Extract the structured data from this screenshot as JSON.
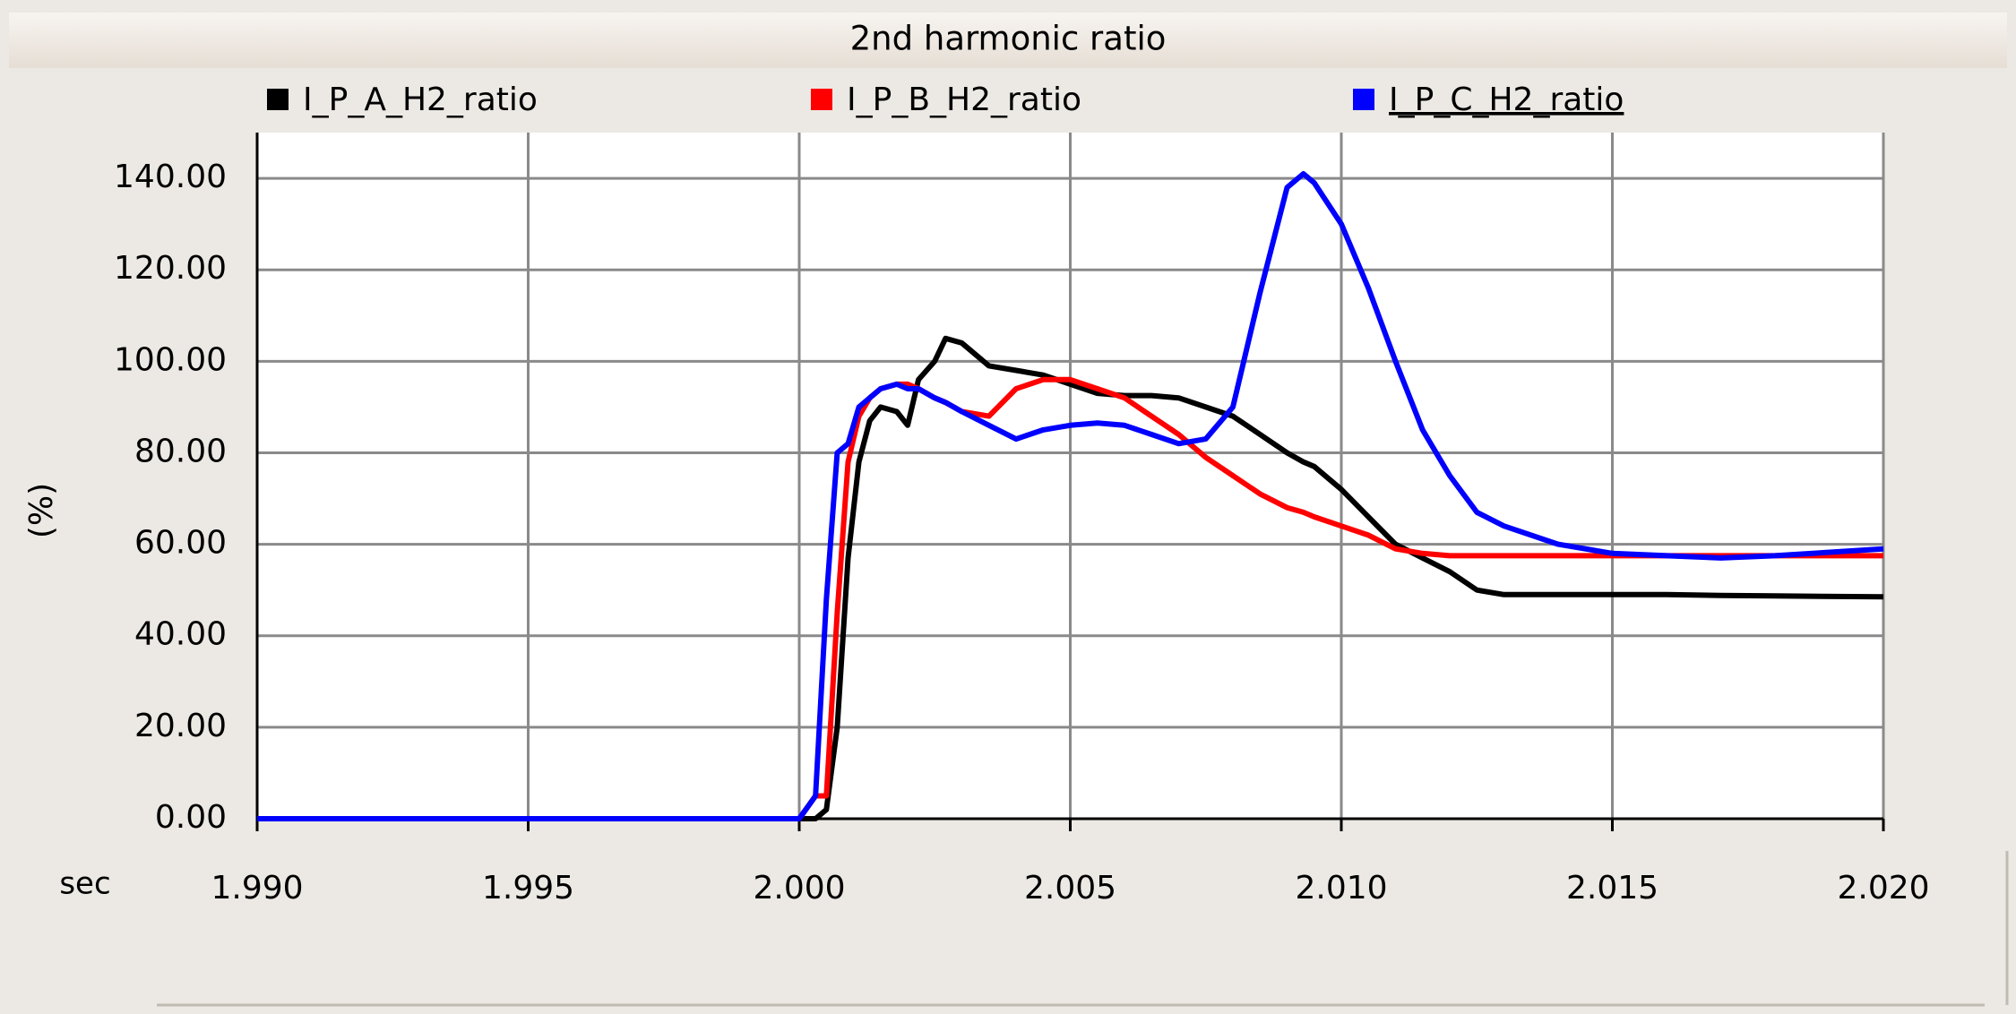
{
  "chart_data": {
    "type": "line",
    "title": "2nd harmonic ratio",
    "x_label": "sec",
    "y_label": "(%)",
    "xlim": [
      1.99,
      2.02
    ],
    "ylim": [
      0,
      150
    ],
    "xticks": [
      {
        "value": 1.99,
        "label": "1.990"
      },
      {
        "value": 1.995,
        "label": "1.995"
      },
      {
        "value": 2.0,
        "label": "2.000"
      },
      {
        "value": 2.005,
        "label": "2.005"
      },
      {
        "value": 2.01,
        "label": "2.010"
      },
      {
        "value": 2.015,
        "label": "2.015"
      },
      {
        "value": 2.02,
        "label": "2.020"
      }
    ],
    "yticks": [
      {
        "value": 0,
        "label": "0.00"
      },
      {
        "value": 20,
        "label": "20.00"
      },
      {
        "value": 40,
        "label": "40.00"
      },
      {
        "value": 60,
        "label": "60.00"
      },
      {
        "value": 80,
        "label": "80.00"
      },
      {
        "value": 100,
        "label": "100.00"
      },
      {
        "value": 120,
        "label": "120.00"
      },
      {
        "value": 140,
        "label": "140.00"
      }
    ],
    "grid": true,
    "x": [
      1.99,
      2.0,
      2.0003,
      2.0005,
      2.0007,
      2.0009,
      2.0011,
      2.0013,
      2.0015,
      2.0018,
      2.002,
      2.0022,
      2.0025,
      2.0027,
      2.003,
      2.0035,
      2.004,
      2.0045,
      2.005,
      2.0055,
      2.006,
      2.0065,
      2.007,
      2.0075,
      2.008,
      2.0085,
      2.009,
      2.0093,
      2.0095,
      2.01,
      2.0105,
      2.011,
      2.0115,
      2.012,
      2.0125,
      2.013,
      2.014,
      2.015,
      2.016,
      2.017,
      2.018,
      2.02
    ],
    "series": [
      {
        "name": "I_P_A_H2_ratio",
        "color": "#000000",
        "values": [
          0,
          0,
          0,
          2,
          20,
          57,
          78,
          87,
          90,
          89,
          86,
          96,
          100,
          105,
          104,
          99,
          98,
          97,
          95,
          93,
          92.5,
          92.5,
          92,
          90,
          88,
          84,
          80,
          78,
          77,
          72,
          66,
          60,
          57,
          54,
          50,
          49,
          49,
          49,
          49,
          48.8,
          48.7,
          48.5
        ]
      },
      {
        "name": "I_P_B_H2_ratio",
        "color": "#ff0000",
        "values": [
          0,
          0,
          5,
          5,
          45,
          78,
          88,
          92,
          94,
          95,
          95,
          94,
          92,
          91,
          89,
          88,
          94,
          96,
          96,
          94,
          92,
          88,
          84,
          79,
          75,
          71,
          68,
          67,
          66,
          64,
          62,
          59,
          58,
          57.5,
          57.5,
          57.5,
          57.5,
          57.5,
          57.5,
          57.5,
          57.5,
          57.5
        ]
      },
      {
        "name": "I_P_C_H2_ratio",
        "color": "#0000ff",
        "values": [
          0,
          0,
          5,
          48,
          80,
          82,
          90,
          92,
          94,
          95,
          94,
          94,
          92,
          91,
          89,
          86,
          83,
          85,
          86,
          86.5,
          86,
          84,
          82,
          83,
          90,
          115,
          138,
          141,
          139,
          130,
          116,
          100,
          85,
          75,
          67,
          64,
          60,
          58,
          57.5,
          57,
          57.5,
          59
        ]
      }
    ]
  }
}
